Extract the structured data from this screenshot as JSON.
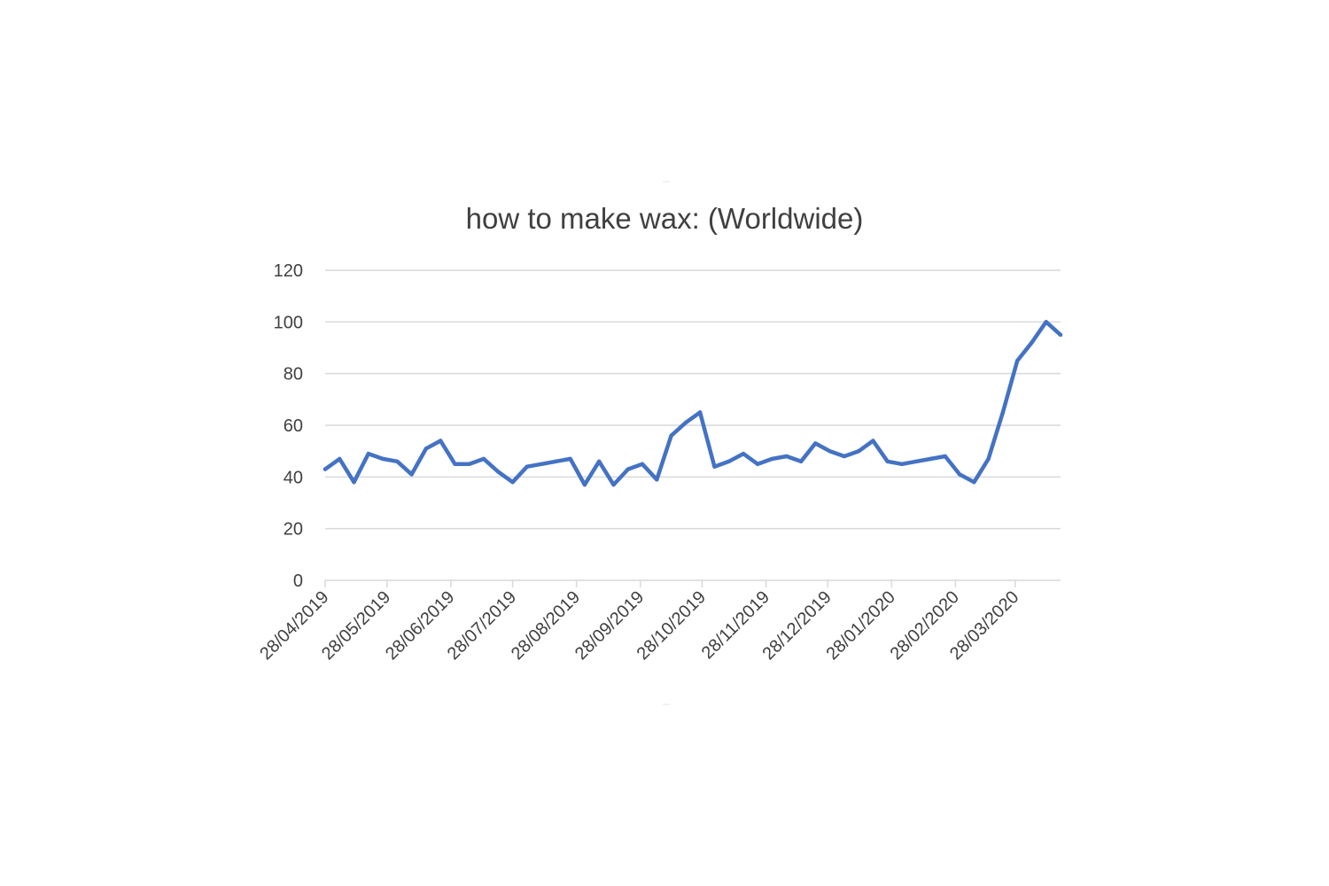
{
  "chart_data": {
    "type": "line",
    "title": "how to make wax: (Worldwide)",
    "xlabel": "",
    "ylabel": "",
    "ylim": [
      0,
      120
    ],
    "y_ticks": [
      0,
      20,
      40,
      60,
      80,
      100,
      120
    ],
    "x_ticks": [
      "28/04/2019",
      "28/05/2019",
      "28/06/2019",
      "28/07/2019",
      "28/08/2019",
      "28/09/2019",
      "28/10/2019",
      "28/11/2019",
      "28/12/2019",
      "28/01/2020",
      "28/02/2020",
      "28/03/2020"
    ],
    "grid": true,
    "legend": "none",
    "line_color": "#4472c4",
    "series": [
      {
        "x": [
          "28/04/2019",
          "05/05/2019",
          "12/05/2019",
          "19/05/2019",
          "26/05/2019",
          "02/06/2019",
          "09/06/2019",
          "16/06/2019",
          "23/06/2019",
          "30/06/2019",
          "07/07/2019",
          "14/07/2019",
          "21/07/2019",
          "28/07/2019",
          "04/08/2019",
          "11/08/2019",
          "18/08/2019",
          "25/08/2019",
          "01/09/2019",
          "08/09/2019",
          "15/09/2019",
          "22/09/2019",
          "29/09/2019",
          "06/10/2019",
          "13/10/2019",
          "20/10/2019",
          "27/10/2019",
          "03/11/2019",
          "10/11/2019",
          "17/11/2019",
          "24/11/2019",
          "01/12/2019",
          "08/12/2019",
          "15/12/2019",
          "22/12/2019",
          "29/12/2019",
          "05/01/2020",
          "12/01/2020",
          "19/01/2020",
          "26/01/2020",
          "02/02/2020",
          "09/02/2020",
          "16/02/2020",
          "23/02/2020",
          "01/03/2020",
          "08/03/2020",
          "15/03/2020",
          "22/03/2020",
          "29/03/2020",
          "05/04/2020",
          "12/04/2020",
          "19/04/2020"
        ],
        "values": [
          43,
          47,
          38,
          49,
          47,
          46,
          41,
          51,
          54,
          45,
          45,
          47,
          42,
          38,
          44,
          45,
          46,
          47,
          37,
          46,
          37,
          43,
          45,
          39,
          56,
          61,
          65,
          44,
          46,
          49,
          45,
          47,
          48,
          46,
          53,
          50,
          48,
          50,
          54,
          46,
          45,
          46,
          47,
          48,
          41,
          38,
          47,
          65,
          85,
          92,
          100,
          95
        ]
      }
    ]
  }
}
